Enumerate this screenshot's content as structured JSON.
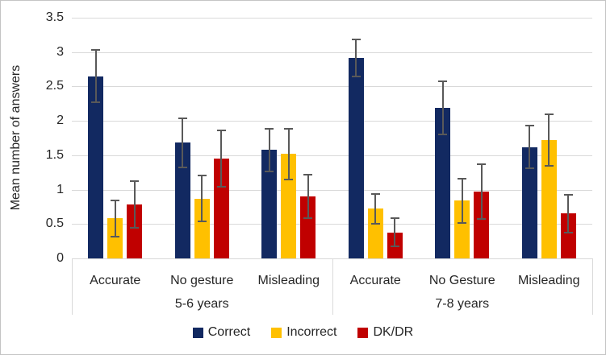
{
  "chart_data": {
    "type": "bar",
    "title": "",
    "ylabel": "Mean number of answers",
    "xlabel": "",
    "ylim": [
      0,
      3.5
    ],
    "yticks": [
      "0",
      "0.5",
      "1",
      "1.5",
      "2",
      "2.5",
      "3",
      "3.5"
    ],
    "grid": true,
    "legend_position": "bottom",
    "group_labels": [
      "5-6 years",
      "7-8 years"
    ],
    "categories": [
      "Accurate",
      "No gesture",
      "Misleading",
      "Accurate",
      "No Gesture",
      "Misleading"
    ],
    "series": [
      {
        "name": "Correct",
        "color": "#122961",
        "values": [
          2.65,
          1.68,
          1.58,
          2.91,
          2.19,
          1.62
        ],
        "errors": [
          0.38,
          0.36,
          0.31,
          0.27,
          0.39,
          0.31
        ]
      },
      {
        "name": "Incorrect",
        "color": "#FFC000",
        "values": [
          0.58,
          0.87,
          1.52,
          0.72,
          0.84,
          1.72
        ],
        "errors": [
          0.26,
          0.33,
          0.37,
          0.22,
          0.32,
          0.37
        ]
      },
      {
        "name": "DK/DR",
        "color": "#C00000",
        "values": [
          0.78,
          1.45,
          0.9,
          0.38,
          0.97,
          0.65
        ],
        "errors": [
          0.34,
          0.41,
          0.32,
          0.21,
          0.4,
          0.28
        ]
      }
    ],
    "error_bar_color": "#595959",
    "gridline_color": "#d9d9d9",
    "axis_text_color": "#262626"
  }
}
